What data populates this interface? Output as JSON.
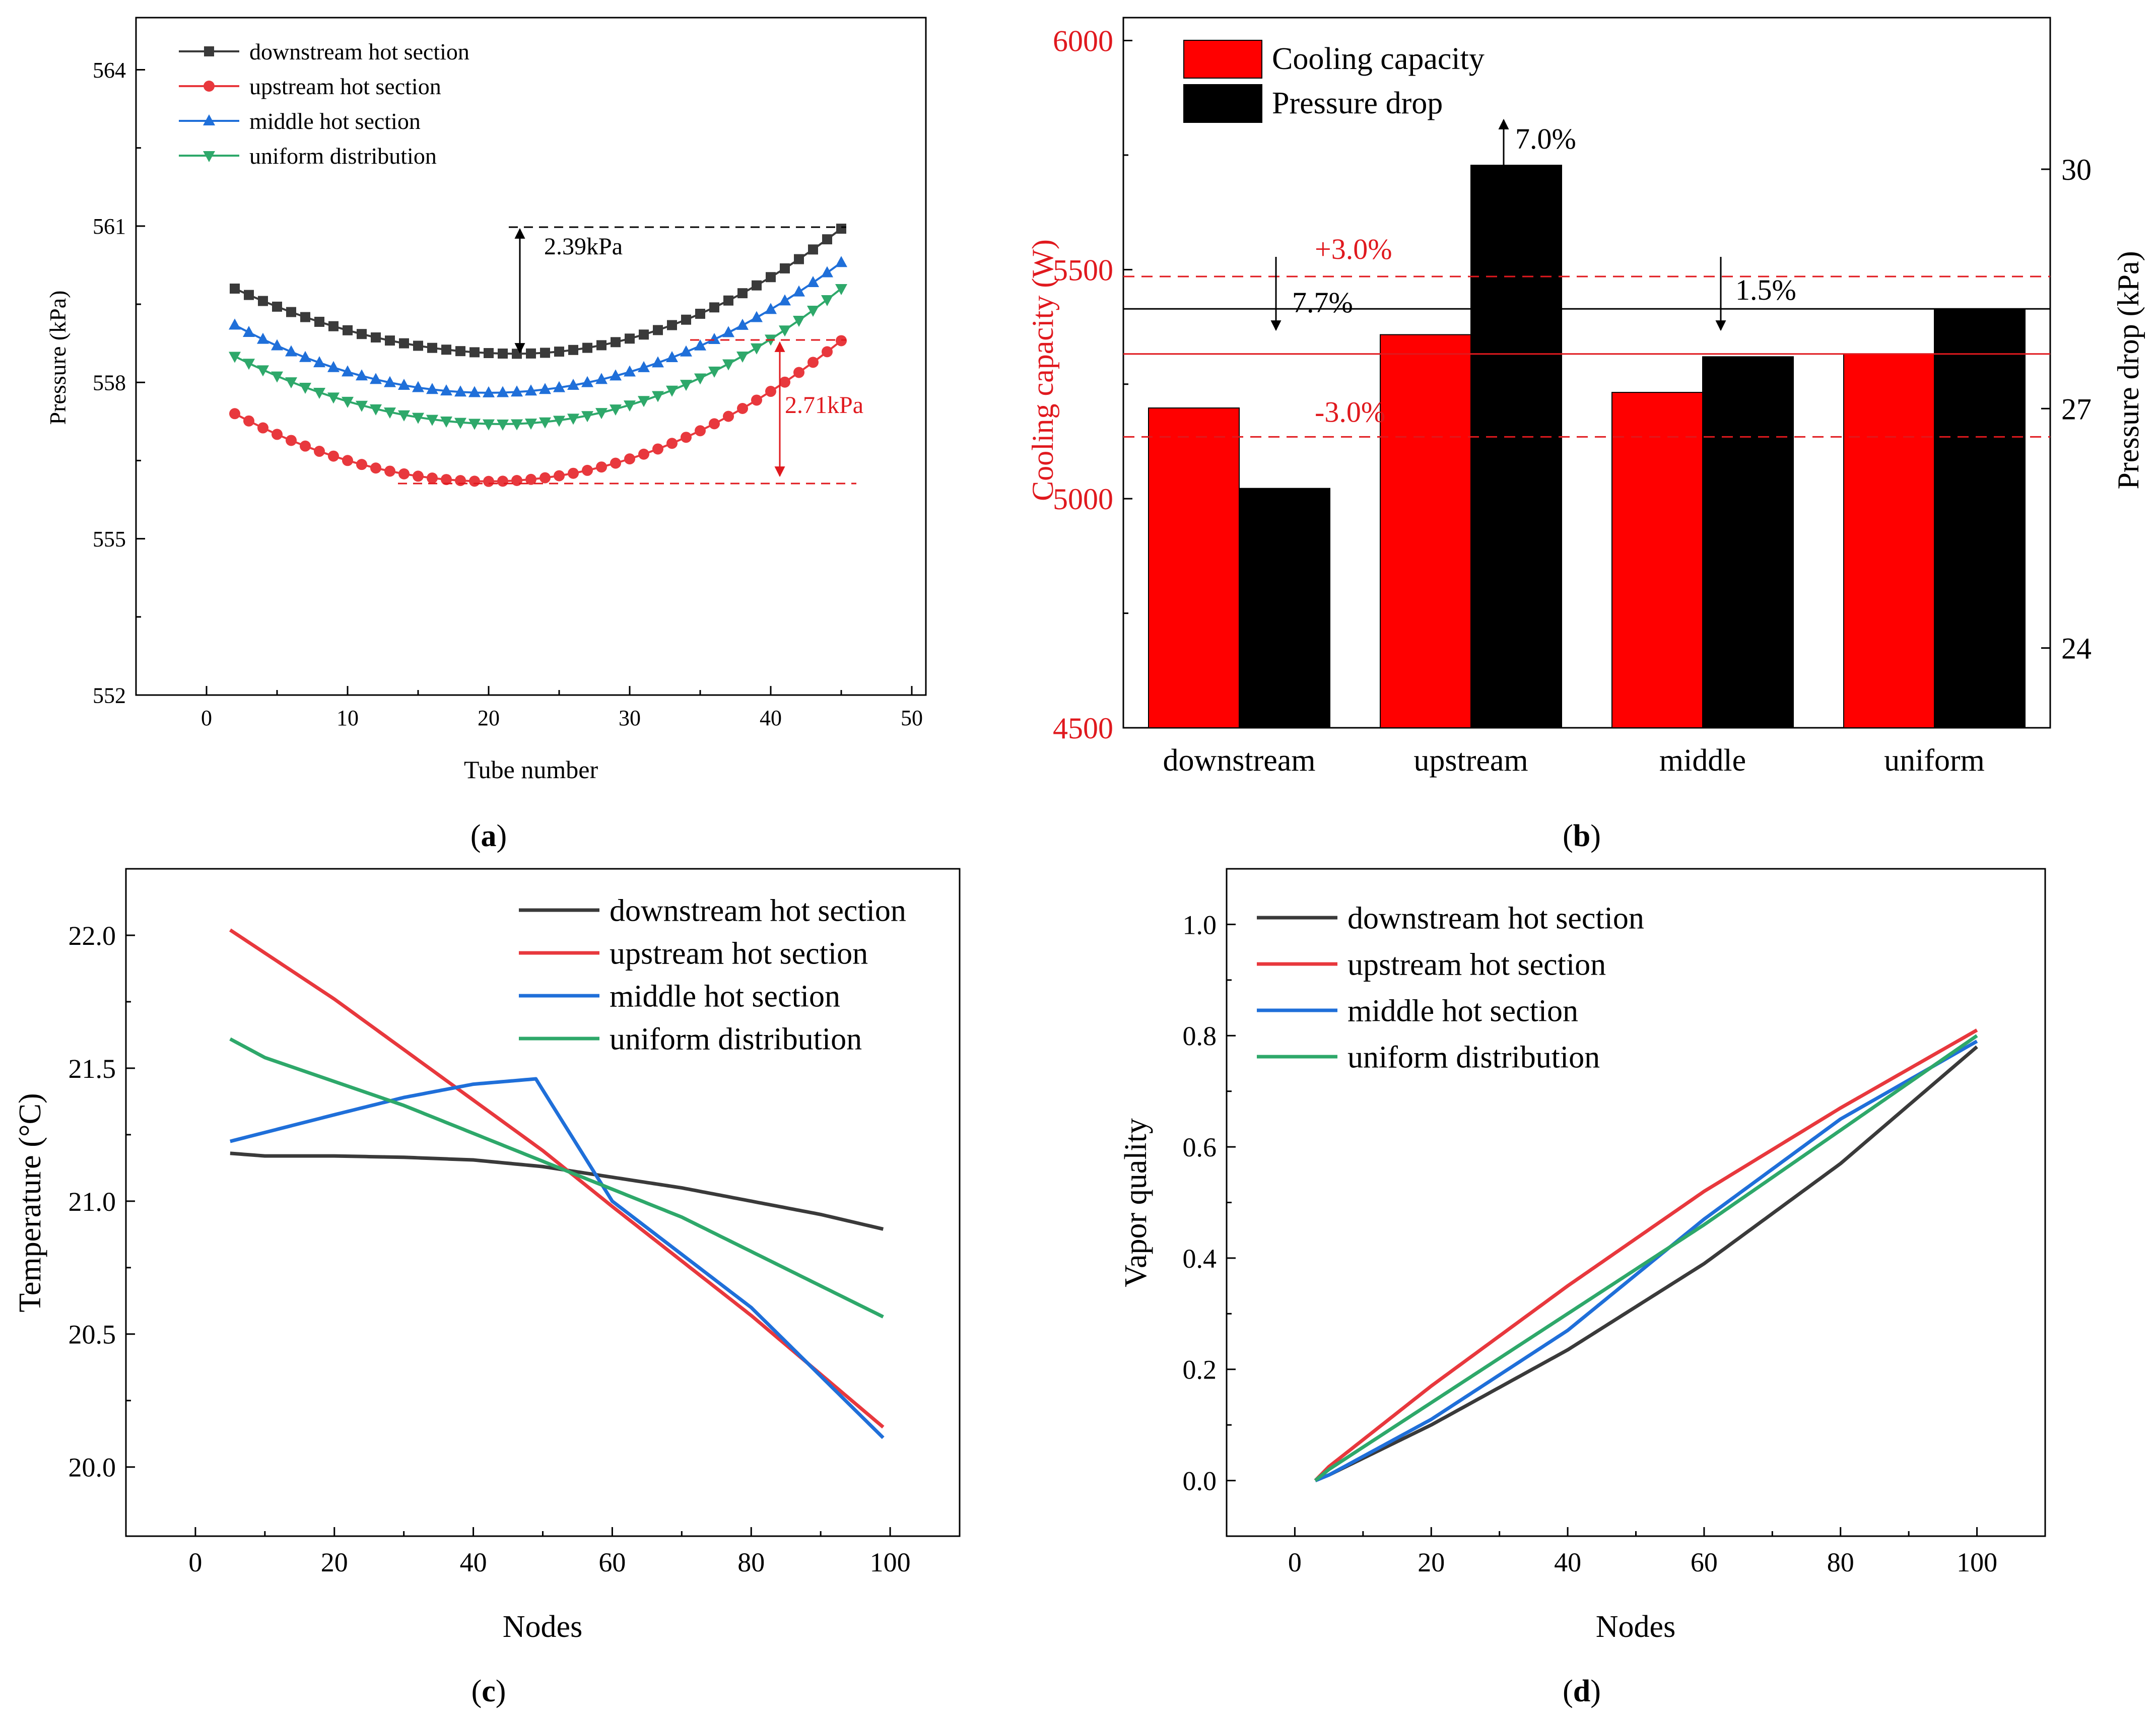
{
  "chart_data": [
    {
      "panel": "a",
      "caption": "(a)",
      "caption_letter": "a",
      "type": "line",
      "xlabel": "Tube number",
      "ylabel": "Pressure (kPa)",
      "xlim": [
        -5,
        51
      ],
      "ylim": [
        552,
        565
      ],
      "xticks": [
        0,
        10,
        20,
        30,
        40,
        50
      ],
      "yticks": [
        552,
        555,
        558,
        561,
        564
      ],
      "legend_position": "top-left",
      "series": [
        {
          "name": "downstream hot section",
          "color": "#3a3a3a",
          "marker": "square",
          "x_start": 2,
          "x_end": 45,
          "min_x": 22,
          "start": 559.8,
          "min": 558.55,
          "end": 560.95
        },
        {
          "name": "upstream hot section",
          "color": "#e8383d",
          "marker": "circle",
          "x_start": 2,
          "x_end": 45,
          "min_x": 20,
          "start": 557.4,
          "min": 556.1,
          "end": 558.8
        },
        {
          "name": "middle hot section",
          "color": "#1f6fd9",
          "marker": "triangle-up",
          "x_start": 2,
          "x_end": 45,
          "min_x": 20,
          "start": 559.1,
          "min": 557.8,
          "end": 560.3
        },
        {
          "name": "uniform distribution",
          "color": "#2ea86a",
          "marker": "triangle-down",
          "x_start": 2,
          "x_end": 45,
          "min_x": 21,
          "start": 558.5,
          "min": 557.2,
          "end": 559.8
        }
      ],
      "annotations": [
        {
          "label": "2.39kPa",
          "color": "#000000"
        },
        {
          "label": "2.71kPa",
          "color": "#e0191e"
        }
      ]
    },
    {
      "panel": "b",
      "caption": "(b)",
      "caption_letter": "b",
      "type": "bar",
      "categories": [
        "downstream",
        "upstream",
        "middle",
        "uniform"
      ],
      "ylabel_left": "Cooling capacity (W)",
      "ylabel_right": "Pressure drop (kPa)",
      "ylim_left": [
        4500,
        6050
      ],
      "ylim_right": [
        23.0,
        31.9
      ],
      "yticks_left": [
        4500,
        5000,
        5500,
        6000
      ],
      "yticks_right": [
        24,
        27,
        30
      ],
      "legend_position": "top-left",
      "series": [
        {
          "name": "Cooling capacity",
          "axis": "left",
          "color": "#ff0000",
          "values": [
            5198,
            5358,
            5232,
            5316
          ]
        },
        {
          "name": "Pressure drop",
          "axis": "right",
          "color": "#000000",
          "values": [
            26.0,
            30.05,
            27.65,
            28.25
          ]
        }
      ],
      "reference_lines": [
        {
          "label": "+3.0%",
          "axis": "left",
          "value": 5485,
          "color": "#e0191e",
          "style": "dashed"
        },
        {
          "label": "",
          "axis": "left",
          "value": 5316,
          "color": "#e0191e",
          "style": "solid"
        },
        {
          "label": "-3.0%",
          "axis": "left",
          "value": 5135,
          "color": "#e0191e",
          "style": "dashed"
        },
        {
          "label": "",
          "axis": "right",
          "value": 28.25,
          "color": "#000000",
          "style": "solid"
        }
      ],
      "annotations": [
        {
          "label": "7.0%",
          "color": "#000000"
        },
        {
          "label": "7.7%",
          "color": "#000000"
        },
        {
          "label": "1.5%",
          "color": "#000000"
        }
      ]
    },
    {
      "panel": "c",
      "caption": "(c)",
      "caption_letter": "c",
      "type": "line",
      "xlabel": "Nodes",
      "ylabel": "Temperature (°C)",
      "xlim": [
        -10,
        110
      ],
      "ylim": [
        19.74,
        22.25
      ],
      "xticks": [
        0,
        20,
        40,
        60,
        80,
        100
      ],
      "yticks": [
        20.0,
        20.5,
        21.0,
        21.5,
        22.0
      ],
      "ytick_labels": [
        "20.0",
        "20.5",
        "21.0",
        "21.5",
        "22.0"
      ],
      "legend_position": "top-right",
      "series": [
        {
          "name": "downstream hot section",
          "color": "#3a3a3a",
          "x": [
            5,
            10,
            20,
            30,
            40,
            50,
            60,
            70,
            80,
            90,
            99
          ],
          "y": [
            21.18,
            21.17,
            21.17,
            21.165,
            21.155,
            21.13,
            21.09,
            21.05,
            21.0,
            20.95,
            20.895
          ]
        },
        {
          "name": "upstream hot section",
          "color": "#e8383d",
          "x": [
            5,
            20,
            40,
            50,
            60,
            80,
            99
          ],
          "y": [
            22.02,
            21.76,
            21.38,
            21.19,
            20.98,
            20.57,
            20.15
          ]
        },
        {
          "name": "middle hot section",
          "color": "#1f6fd9",
          "x": [
            5,
            20,
            30,
            40,
            49,
            60,
            80,
            99
          ],
          "y": [
            21.225,
            21.325,
            21.39,
            21.44,
            21.46,
            21.0,
            20.6,
            20.11
          ]
        },
        {
          "name": "uniform distribution",
          "color": "#2ea86a",
          "x": [
            5,
            10,
            30,
            50,
            70,
            99
          ],
          "y": [
            21.61,
            21.54,
            21.36,
            21.15,
            20.94,
            20.565
          ]
        }
      ]
    },
    {
      "panel": "d",
      "caption": "(d)",
      "caption_letter": "d",
      "type": "line",
      "xlabel": "Nodes",
      "ylabel": "Vapor quality",
      "xlim": [
        -10,
        110
      ],
      "ylim": [
        -0.1,
        1.1
      ],
      "xticks": [
        0,
        20,
        40,
        60,
        80,
        100
      ],
      "yticks": [
        0.0,
        0.2,
        0.4,
        0.6,
        0.8,
        1.0
      ],
      "ytick_labels": [
        "0.0",
        "0.2",
        "0.4",
        "0.6",
        "0.8",
        "1.0"
      ],
      "legend_position": "top-left",
      "series": [
        {
          "name": "downstream hot section",
          "color": "#3a3a3a",
          "x": [
            3,
            5,
            20,
            40,
            60,
            80,
            100
          ],
          "y": [
            0.0,
            0.01,
            0.1,
            0.235,
            0.39,
            0.57,
            0.78
          ]
        },
        {
          "name": "upstream hot section",
          "color": "#e8383d",
          "x": [
            3,
            5,
            20,
            40,
            60,
            80,
            100
          ],
          "y": [
            0.0,
            0.025,
            0.17,
            0.35,
            0.52,
            0.67,
            0.81
          ]
        },
        {
          "name": "middle hot section",
          "color": "#1f6fd9",
          "x": [
            3,
            5,
            20,
            40,
            60,
            80,
            100
          ],
          "y": [
            0.0,
            0.01,
            0.11,
            0.27,
            0.47,
            0.65,
            0.79
          ]
        },
        {
          "name": "uniform distribution",
          "color": "#2ea86a",
          "x": [
            3,
            5,
            20,
            40,
            60,
            80,
            100
          ],
          "y": [
            0.0,
            0.02,
            0.14,
            0.3,
            0.46,
            0.63,
            0.8
          ]
        }
      ]
    }
  ]
}
